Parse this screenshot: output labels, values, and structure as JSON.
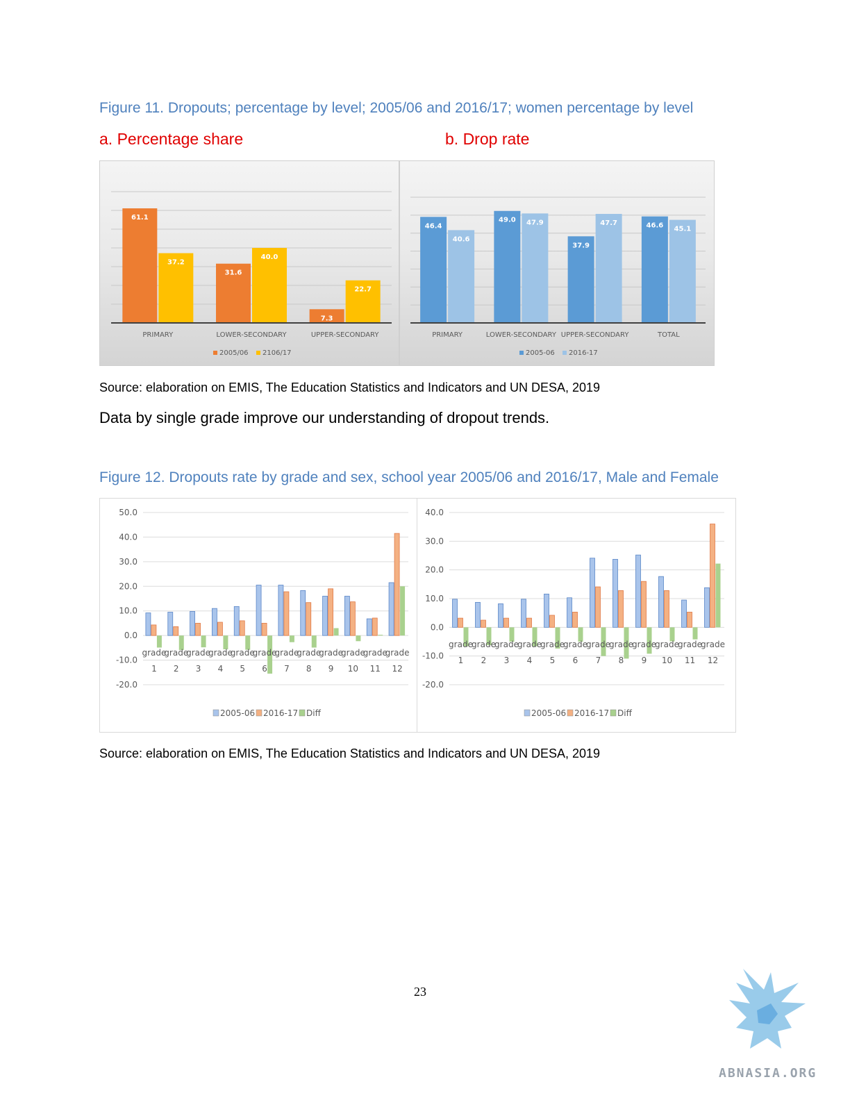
{
  "figure11": {
    "title": "Figure 11. Dropouts; percentage by level; 2005/06 and 2016/17; women percentage by level",
    "panel_a_title": "a. Percentage share",
    "panel_b_title": "b. Drop rate",
    "source": "Source: elaboration on EMIS, The Education Statistics and Indicators and UN DESA, 2019"
  },
  "body_text": "Data by single grade improve our understanding of dropout trends.",
  "figure12": {
    "title": "Figure 12. Dropouts rate by grade and sex, school year 2005/06 and 2016/17, Male and Female",
    "source": "Source: elaboration on EMIS, The Education Statistics and Indicators and UN DESA, 2019"
  },
  "page_number": "23",
  "logo": {
    "text": "ABNASIA.ORG",
    "icon": "griffin-logo-icon"
  },
  "chart_data": [
    {
      "id": "fig11a",
      "type": "bar",
      "categories": [
        "PRIMARY",
        "LOWER-SECONDARY",
        "UPPER-SECONDARY"
      ],
      "series": [
        {
          "name": "2005/06",
          "values": [
            61.1,
            31.6,
            7.3
          ],
          "color": "#ed7d31"
        },
        {
          "name": "2106/17",
          "values": [
            37.2,
            40.0,
            22.7
          ],
          "color": "#ffc000"
        }
      ],
      "ylim": [
        0,
        70
      ],
      "grid": true,
      "legend": "bottom",
      "data_labels": true
    },
    {
      "id": "fig11b",
      "type": "bar",
      "categories": [
        "PRIMARY",
        "LOWER-SECONDARY",
        "UPPER-SECONDARY",
        "TOTAL"
      ],
      "series": [
        {
          "name": "2005-06",
          "values": [
            46.4,
            49.0,
            37.9,
            46.6
          ],
          "color": "#5b9bd5"
        },
        {
          "name": "2016-17",
          "values": [
            40.6,
            47.9,
            47.7,
            45.1
          ],
          "color": "#9dc3e6"
        }
      ],
      "ylim": [
        0,
        55
      ],
      "grid": true,
      "legend": "bottom",
      "data_labels": true
    },
    {
      "id": "fig12a",
      "type": "bar",
      "categories": [
        "grade 1",
        "grade 2",
        "grade 3",
        "grade 4",
        "grade 5",
        "grade 6",
        "grade 7",
        "grade 8",
        "grade 9",
        "grade 10",
        "grade 11",
        "grade 12"
      ],
      "series": [
        {
          "name": "2005-06",
          "values": [
            9.2,
            9.5,
            9.8,
            11.0,
            11.8,
            20.5,
            20.5,
            18.3,
            16.0,
            16.0,
            6.8,
            21.5
          ],
          "color": "#a9c4eb"
        },
        {
          "name": "2016-17",
          "values": [
            4.3,
            3.6,
            5.0,
            5.4,
            6.0,
            5.0,
            17.8,
            13.4,
            19.0,
            13.7,
            7.1,
            41.5
          ],
          "color": "#f4b183"
        },
        {
          "name": "Diff",
          "values": [
            -4.9,
            -5.9,
            -4.8,
            -5.6,
            -5.8,
            -15.5,
            -2.7,
            -4.9,
            3.0,
            -2.3,
            0.3,
            20.0
          ],
          "color": "#a9d18e"
        }
      ],
      "yticks": [
        50.0,
        40.0,
        30.0,
        20.0,
        10.0,
        0.0,
        -10.0,
        -20.0
      ],
      "ylim": [
        -20,
        50
      ],
      "grid": true,
      "legend": "bottom"
    },
    {
      "id": "fig12b",
      "type": "bar",
      "categories": [
        "grade 1",
        "grade 2",
        "grade 3",
        "grade 4",
        "grade 5",
        "grade 6",
        "grade 7",
        "grade 8",
        "grade 9",
        "grade 10",
        "grade 11",
        "grade 12"
      ],
      "series": [
        {
          "name": "2005-06",
          "values": [
            9.8,
            8.7,
            8.2,
            9.8,
            11.6,
            10.3,
            24.1,
            23.7,
            25.2,
            17.7,
            9.5,
            13.8
          ],
          "color": "#a9c4eb"
        },
        {
          "name": "2016-17",
          "values": [
            3.2,
            2.5,
            3.2,
            3.2,
            4.2,
            5.3,
            14.1,
            12.8,
            16.0,
            12.8,
            5.3,
            36.0
          ],
          "color": "#f4b183"
        },
        {
          "name": "Diff",
          "values": [
            -6.6,
            -6.2,
            -5.0,
            -6.6,
            -7.4,
            -5.0,
            -10.0,
            -10.9,
            -9.2,
            -4.9,
            -4.2,
            22.2
          ],
          "color": "#a9d18e"
        }
      ],
      "yticks": [
        40.0,
        30.0,
        20.0,
        10.0,
        0.0,
        -10.0,
        -20.0
      ],
      "ylim": [
        -20,
        40
      ],
      "grid": true,
      "legend": "bottom"
    }
  ]
}
